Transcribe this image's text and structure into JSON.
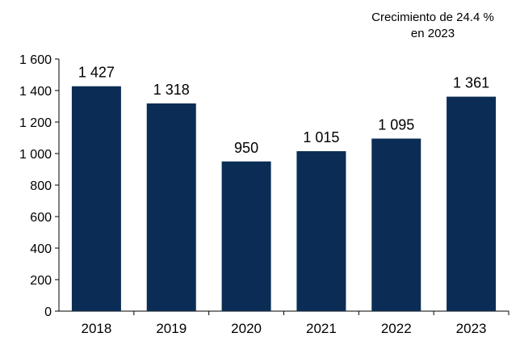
{
  "chart_data": {
    "type": "bar",
    "categories": [
      "2018",
      "2019",
      "2020",
      "2021",
      "2022",
      "2023"
    ],
    "values": [
      1427,
      1318,
      950,
      1015,
      1095,
      1361
    ],
    "value_labels": [
      "1 427",
      "1 318",
      "950",
      "1 015",
      "1 095",
      "1 361"
    ],
    "title": "",
    "xlabel": "",
    "ylabel": "",
    "ylim": [
      0,
      1600
    ],
    "yticks": [
      0,
      200,
      400,
      600,
      800,
      1000,
      1200,
      1400,
      1600
    ],
    "ytick_labels": [
      "0",
      "200",
      "400",
      "600",
      "800",
      "1 000",
      "1 200",
      "1 400",
      "1 600"
    ],
    "grid": false,
    "bar_color": "#0b2d55",
    "annotation": {
      "line1": "Crecimiento de 24.4 %",
      "line2": "en 2023"
    }
  }
}
